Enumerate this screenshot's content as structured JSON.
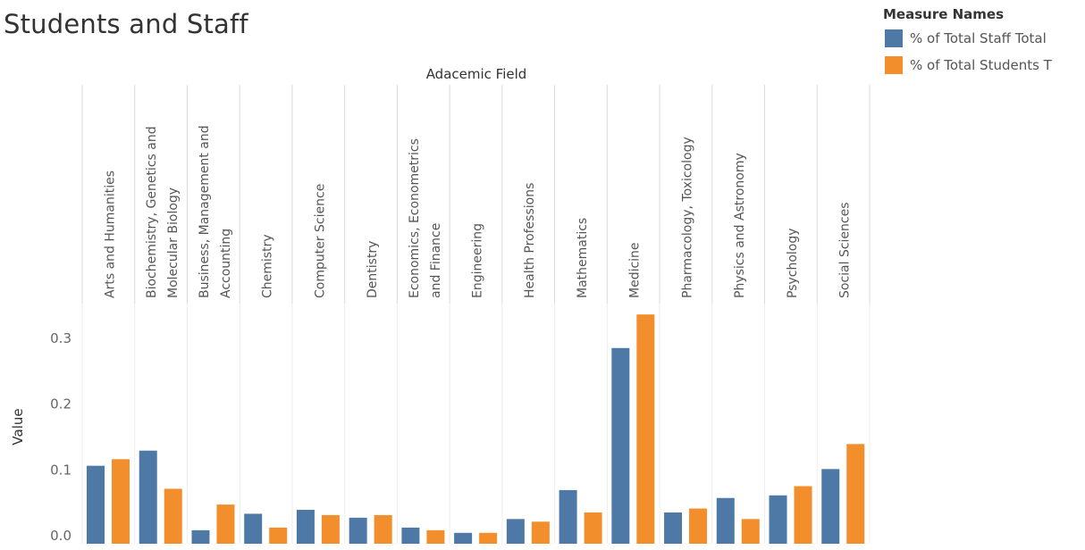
{
  "title": "Students and Staff",
  "legend": {
    "title": "Measure Names",
    "items": [
      {
        "label": "% of Total Staff Total",
        "color": "#4e79a7"
      },
      {
        "label": "% of Total Students T",
        "color": "#f28e2b"
      }
    ]
  },
  "chart_data": {
    "type": "bar",
    "title": "Students and Staff",
    "column_header": "Adacemic Field",
    "ylabel": "Value",
    "xlabel": "",
    "ylim": [
      0,
      0.34
    ],
    "yticks": [
      0.0,
      0.1,
      0.2,
      0.3
    ],
    "ytick_labels": [
      "0.0",
      "0.1",
      "0.2",
      "0.3"
    ],
    "grid": false,
    "legend_position": "top-right",
    "categories": [
      [
        "Arts and Humanities"
      ],
      [
        "Biochemistry, Genetics and",
        "Molecular Biology"
      ],
      [
        "Business, Management and",
        "Accounting"
      ],
      [
        "Chemistry"
      ],
      [
        "Computer Science"
      ],
      [
        "Dentistry"
      ],
      [
        "Economics, Econometrics",
        "and Finance"
      ],
      [
        "Engineering"
      ],
      [
        "Health Professions"
      ],
      [
        "Mathematics"
      ],
      [
        "Medicine"
      ],
      [
        "Pharmacology, Toxicology"
      ],
      [
        "Physics and Astronomy"
      ],
      [
        "Psychology"
      ],
      [
        "Social Sciences"
      ]
    ],
    "series": [
      {
        "name": "% of Total Staff Total",
        "color": "#4e79a7",
        "values": [
          0.105,
          0.128,
          0.007,
          0.032,
          0.038,
          0.026,
          0.011,
          0.003,
          0.024,
          0.068,
          0.284,
          0.034,
          0.056,
          0.06,
          0.1
        ]
      },
      {
        "name": "% of Total Students T",
        "color": "#f28e2b",
        "values": [
          0.115,
          0.07,
          0.046,
          0.011,
          0.03,
          0.03,
          0.007,
          0.003,
          0.02,
          0.034,
          0.335,
          0.04,
          0.024,
          0.074,
          0.138
        ]
      }
    ]
  }
}
